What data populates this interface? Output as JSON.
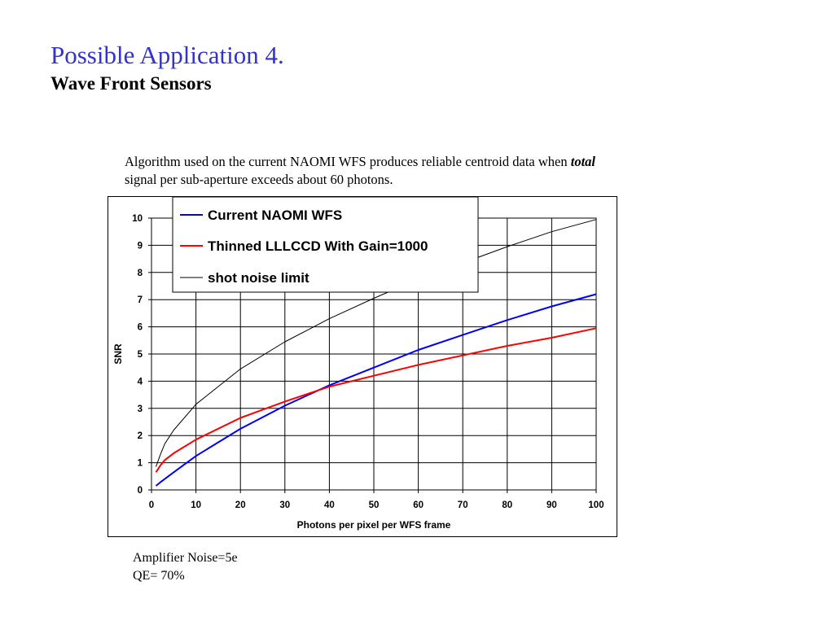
{
  "slide": {
    "title": "Possible Application 4.",
    "subtitle": "Wave Front Sensors",
    "caption_pre": "Algorithm used on the current NAOMI WFS produces reliable centroid data  when ",
    "caption_em": "total",
    "caption_post": " signal per sub-aperture exceeds about 60 photons.",
    "note_1": "Amplifier Noise=5e",
    "note_2": "QE= 70%"
  },
  "colors": {
    "title": "#3333cc",
    "series_naomi": "#0000ff",
    "series_lllccd": "#ff0000",
    "series_shot": "#000000"
  },
  "chart_data": {
    "type": "line",
    "title": "",
    "xlabel": "Photons per pixel per WFS frame",
    "ylabel": "SNR",
    "xlim": [
      0,
      100
    ],
    "ylim": [
      0,
      10
    ],
    "xticks": [
      0,
      10,
      20,
      30,
      40,
      50,
      60,
      70,
      80,
      90,
      100
    ],
    "yticks": [
      0,
      1,
      2,
      3,
      4,
      5,
      6,
      7,
      8,
      9,
      10
    ],
    "grid": true,
    "legend_position": "top-left",
    "series": [
      {
        "name": "Current NAOMI WFS",
        "color": "#0000ff",
        "x": [
          1,
          2,
          5,
          10,
          20,
          30,
          40,
          50,
          60,
          70,
          80,
          90,
          100
        ],
        "y": [
          0.15,
          0.28,
          0.65,
          1.25,
          2.25,
          3.1,
          3.85,
          4.5,
          5.15,
          5.7,
          6.25,
          6.75,
          7.2
        ]
      },
      {
        "name": "Thinned LLLCCD With Gain=1000",
        "color": "#ff0000",
        "x": [
          1,
          2,
          3,
          5,
          10,
          20,
          30,
          40,
          50,
          60,
          70,
          80,
          90,
          100
        ],
        "y": [
          0.65,
          0.9,
          1.1,
          1.35,
          1.85,
          2.65,
          3.25,
          3.8,
          4.2,
          4.6,
          4.95,
          5.3,
          5.6,
          5.95
        ]
      },
      {
        "name": "shot noise limit",
        "color": "#000000",
        "x": [
          1,
          2,
          3,
          5,
          10,
          20,
          30,
          40,
          50,
          60,
          70,
          80,
          90,
          100
        ],
        "y": [
          0.85,
          1.3,
          1.7,
          2.2,
          3.15,
          4.45,
          5.45,
          6.3,
          7.05,
          7.75,
          8.35,
          8.95,
          9.5,
          9.95
        ]
      }
    ]
  }
}
